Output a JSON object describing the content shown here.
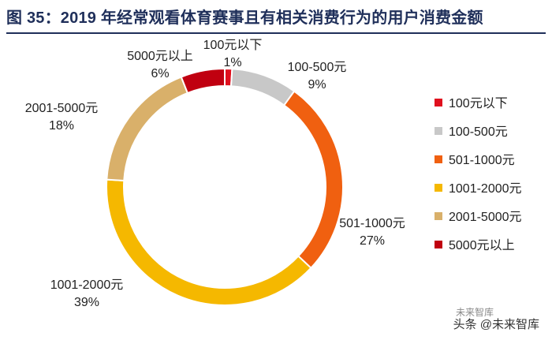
{
  "title": "图 35：2019 年经常观看体育赛事且有相关消费行为的用户消费金额",
  "watermark": {
    "line1": "未来智库",
    "line2": "头条 @未来智库"
  },
  "chart_data": {
    "type": "pie",
    "donut": true,
    "categories": [
      "100元以下",
      "100-500元",
      "501-1000元",
      "1001-2000元",
      "2001-5000元",
      "5000元以上"
    ],
    "values": [
      1,
      9,
      27,
      39,
      18,
      6
    ],
    "value_labels": [
      "1%",
      "9%",
      "27%",
      "39%",
      "18%",
      "6%"
    ],
    "colors": [
      "#e0101e",
      "#c8c8c8",
      "#f06010",
      "#f5b800",
      "#d9b06a",
      "#c00010"
    ],
    "legend_position": "right",
    "title": "图 35：2019 年经常观看体育赛事且有相关消费行为的用户消费金额"
  }
}
